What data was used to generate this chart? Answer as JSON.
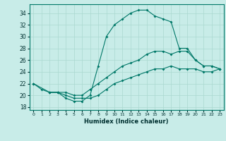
{
  "title": "",
  "xlabel": "Humidex (Indice chaleur)",
  "bg_color": "#c8ece8",
  "line_color": "#007868",
  "grid_color": "#aad8d0",
  "xlim": [
    -0.5,
    23.5
  ],
  "ylim": [
    17.5,
    35.5
  ],
  "xticks": [
    0,
    1,
    2,
    3,
    4,
    5,
    6,
    7,
    8,
    9,
    10,
    11,
    12,
    13,
    14,
    15,
    16,
    17,
    18,
    19,
    20,
    21,
    22,
    23
  ],
  "yticks": [
    18,
    20,
    22,
    24,
    26,
    28,
    30,
    32,
    34
  ],
  "line1_x": [
    0,
    1,
    2,
    3,
    4,
    5,
    6,
    7,
    8,
    9,
    10,
    11,
    12,
    13,
    14,
    15,
    16,
    17,
    18,
    19,
    20,
    21,
    22,
    23
  ],
  "line1_y": [
    22,
    21,
    20.5,
    20.5,
    19.5,
    19,
    19,
    20,
    25,
    30,
    32,
    33,
    34,
    34.5,
    34.5,
    33.5,
    33,
    32.5,
    28,
    28,
    26,
    25,
    25,
    24.5
  ],
  "line2_x": [
    0,
    2,
    3,
    4,
    5,
    6,
    7,
    8,
    9,
    10,
    11,
    12,
    13,
    14,
    15,
    16,
    17,
    18,
    19,
    20,
    21,
    22,
    23
  ],
  "line2_y": [
    22,
    20.5,
    20.5,
    20.5,
    20,
    20,
    21,
    22,
    23,
    24,
    25,
    25.5,
    26,
    27,
    27.5,
    27.5,
    27,
    27.5,
    27.5,
    26,
    25,
    25,
    24.5
  ],
  "line3_x": [
    2,
    3,
    4,
    5,
    6,
    7,
    8,
    9,
    10,
    11,
    12,
    13,
    14,
    15,
    16,
    17,
    18,
    19,
    20,
    21,
    22,
    23
  ],
  "line3_y": [
    20.5,
    20.5,
    20,
    19.5,
    19.5,
    19.5,
    20,
    21,
    22,
    22.5,
    23,
    23.5,
    24,
    24.5,
    24.5,
    25,
    24.5,
    24.5,
    24.5,
    24,
    24,
    24.5
  ]
}
